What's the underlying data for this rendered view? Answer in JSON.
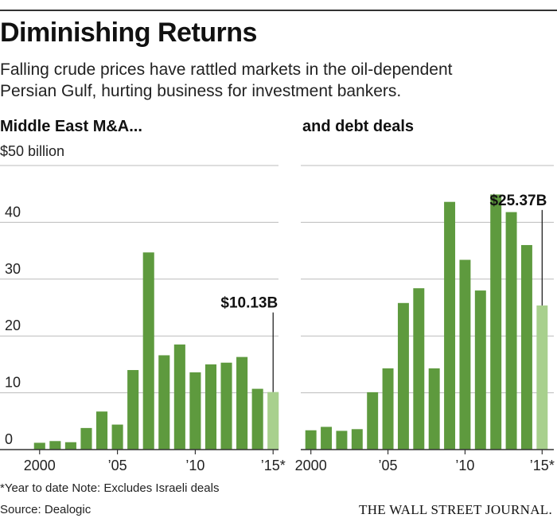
{
  "header": {
    "title": "Diminishing Returns",
    "subtitle": "Falling crude prices have rattled markets in the oil-dependent Persian Gulf, hurting business for investment bankers."
  },
  "unit_label": "$50 billion",
  "footnote": "*Year to date   Note: Excludes Israeli deals",
  "source": "Source: Dealogic",
  "brand": "THE WALL STREET JOURNAL.",
  "colors": {
    "bar": "#5e9a3e",
    "bar_highlight": "#a8d08d",
    "grid": "#bbbbbb",
    "axis": "#333333"
  },
  "chart_data": [
    {
      "type": "bar",
      "title": "Middle East M&A...",
      "xlabel": "",
      "ylabel": "$ billion",
      "ylim": [
        0,
        50
      ],
      "yticks": [
        0,
        10,
        20,
        30,
        40
      ],
      "categories": [
        "2000",
        "2001",
        "2002",
        "2003",
        "2004",
        "2005",
        "2006",
        "2007",
        "2008",
        "2009",
        "2010",
        "2011",
        "2012",
        "2013",
        "2014",
        "2015*"
      ],
      "values": [
        1.2,
        1.5,
        1.3,
        3.8,
        6.7,
        4.4,
        14.0,
        34.7,
        16.6,
        18.5,
        13.6,
        15.0,
        15.3,
        16.3,
        10.7,
        10.13
      ],
      "xtick_labels": [
        {
          "index": 0,
          "label": "2000"
        },
        {
          "index": 5,
          "label": "’05"
        },
        {
          "index": 10,
          "label": "’10"
        },
        {
          "index": 15,
          "label": "’15*"
        }
      ],
      "annotation": {
        "index": 15,
        "label": "$10.13B"
      }
    },
    {
      "type": "bar",
      "title": "and debt deals",
      "xlabel": "",
      "ylabel": "$ billion",
      "ylim": [
        0,
        50
      ],
      "yticks": [
        0,
        10,
        20,
        30,
        40
      ],
      "categories": [
        "2000",
        "2001",
        "2002",
        "2003",
        "2004",
        "2005",
        "2006",
        "2007",
        "2008",
        "2009",
        "2010",
        "2011",
        "2012",
        "2013",
        "2014",
        "2015*"
      ],
      "values": [
        3.4,
        4.0,
        3.3,
        3.6,
        10.1,
        14.3,
        25.8,
        28.4,
        14.3,
        43.6,
        33.4,
        28.0,
        44.9,
        41.8,
        36.0,
        25.37
      ],
      "xtick_labels": [
        {
          "index": 0,
          "label": "2000"
        },
        {
          "index": 5,
          "label": "’05"
        },
        {
          "index": 10,
          "label": "’10"
        },
        {
          "index": 15,
          "label": "’15*"
        }
      ],
      "annotation": {
        "index": 15,
        "label": "$25.37B"
      }
    }
  ]
}
